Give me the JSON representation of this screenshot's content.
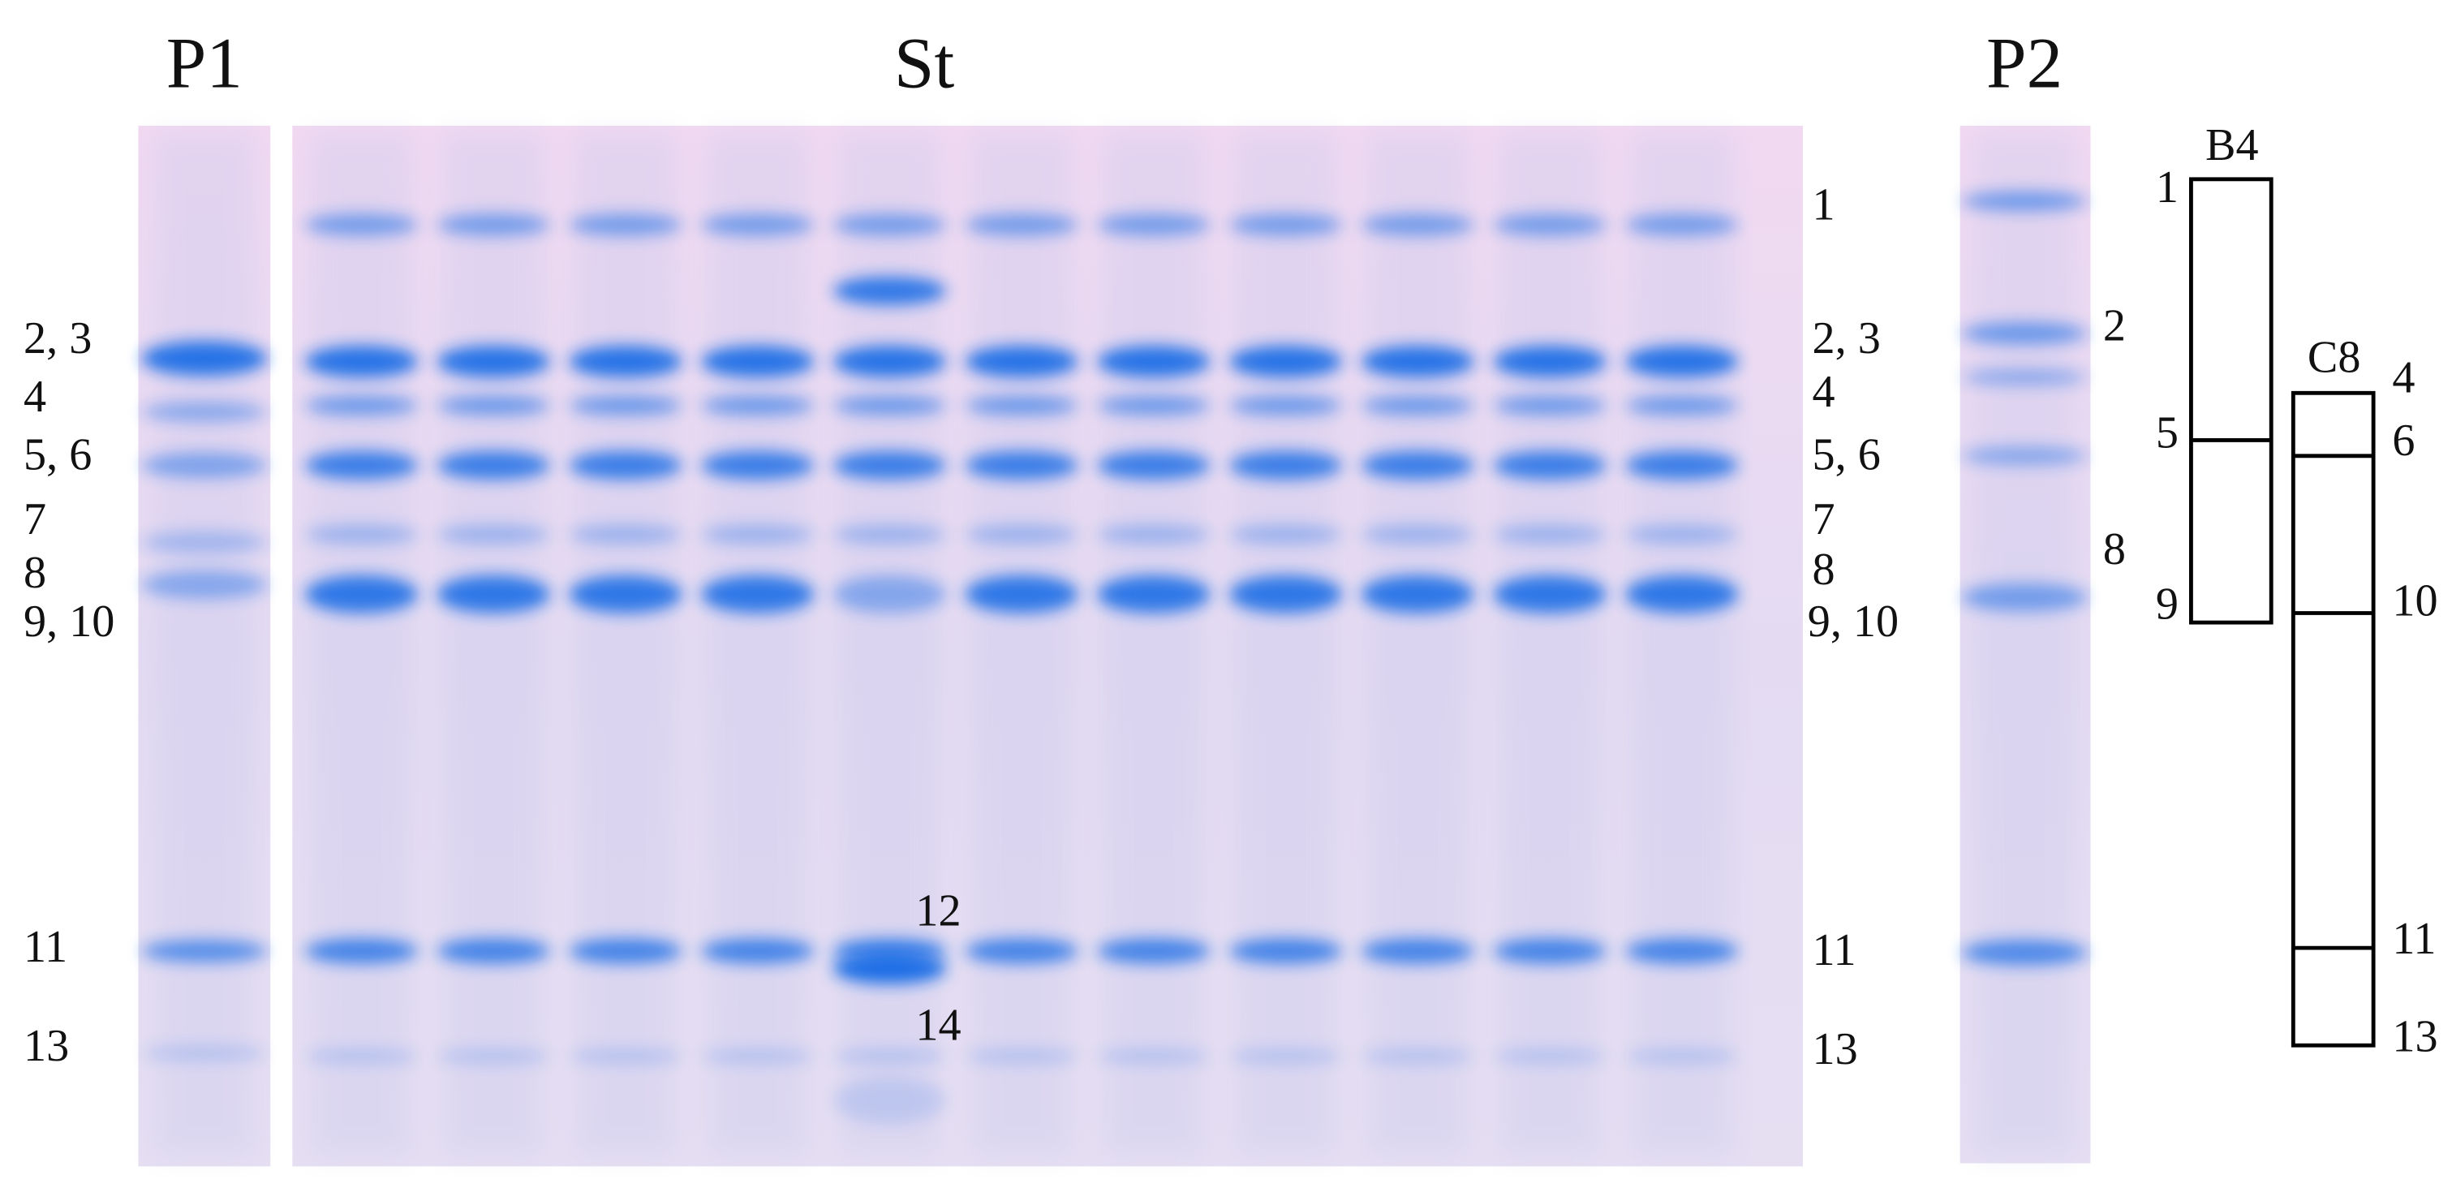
{
  "panels": {
    "p1": {
      "title": "P1",
      "band_labels": [
        "2, 3",
        "4",
        "5, 6",
        "7",
        "8",
        "9, 10",
        "11",
        "13"
      ]
    },
    "st": {
      "title": "St",
      "lane_labels": [
        "12",
        "14"
      ],
      "band_labels": [
        "1",
        "2, 3",
        "4",
        "5, 6",
        "7",
        "8",
        "9, 10",
        "11",
        "13"
      ]
    },
    "p2": {
      "title": "P2",
      "band_labels": [
        "2",
        "8"
      ]
    }
  },
  "schematic": {
    "b4": {
      "title": "B4",
      "labels": [
        "1",
        "5",
        "9"
      ]
    },
    "c8": {
      "title": "C8",
      "labels": [
        "4",
        "6",
        "10",
        "11",
        "13"
      ]
    }
  }
}
